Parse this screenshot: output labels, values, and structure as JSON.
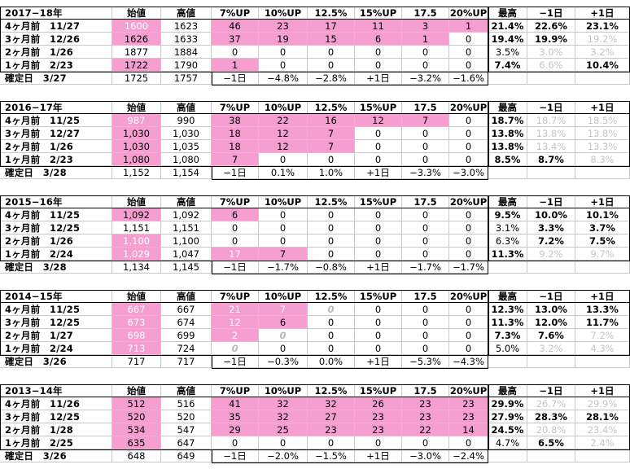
{
  "columns": [
    "",
    "始値",
    "高値",
    "7%UP",
    "10%UP",
    "12.5%",
    "15%UP",
    "17.5",
    "20%UP",
    "最高",
    "−1日",
    "+1日"
  ],
  "sections": [
    {
      "title": "2017−18年",
      "rows": [
        {
          "label": "4ヶ月前　11/27",
          "cells": [
            "1600",
            "1623",
            "46",
            "23",
            "17",
            "11",
            "3",
            "1",
            "21.4%",
            "22.6%",
            "23.1%"
          ],
          "pink": [
            0,
            2,
            3,
            4,
            5,
            6,
            7
          ],
          "dim": [],
          "bold": [
            8,
            9,
            10
          ],
          "faint": [
            0
          ]
        },
        {
          "label": "3ヶ月前　12/26",
          "cells": [
            "1626",
            "1633",
            "37",
            "19",
            "15",
            "6",
            "1",
            "0",
            "19.4%",
            "19.9%",
            "19.2%"
          ],
          "pink": [
            0,
            2,
            3,
            4,
            5,
            6
          ],
          "dim": [
            10
          ],
          "bold": [
            8,
            9
          ],
          "faint": []
        },
        {
          "label": "2ヶ月前　1/26",
          "cells": [
            "1877",
            "1884",
            "0",
            "0",
            "0",
            "0",
            "0",
            "0",
            "3.5%",
            "3.0%",
            "3.2%"
          ],
          "pink": [],
          "dim": [
            9,
            10
          ],
          "bold": [],
          "faint": []
        },
        {
          "label": "1ヶ月前　2/23",
          "cells": [
            "1722",
            "1790",
            "1",
            "0",
            "0",
            "0",
            "0",
            "0",
            "7.4%",
            "6.6%",
            "10.4%"
          ],
          "pink": [
            0,
            2
          ],
          "dim": [
            9
          ],
          "bold": [
            8,
            10
          ],
          "faint": []
        }
      ],
      "confirm": {
        "label": "確定日　3/27",
        "cells": [
          "1725",
          "1757",
          "−1日",
          "−4.8%",
          "−2.8%",
          "+1日",
          "−3.2%",
          "−1.6%"
        ]
      }
    },
    {
      "title": "2016−17年",
      "rows": [
        {
          "label": "4ヶ月前　11/25",
          "cells": [
            "987",
            "990",
            "38",
            "22",
            "16",
            "12",
            "7",
            "0",
            "18.7%",
            "18.7%",
            "18.5%"
          ],
          "pink": [
            0,
            2,
            3,
            4,
            5,
            6
          ],
          "dim": [
            9,
            10
          ],
          "bold": [
            8
          ],
          "faint": [
            0
          ]
        },
        {
          "label": "3ヶ月前　12/27",
          "cells": [
            "1,030",
            "1,030",
            "18",
            "12",
            "7",
            "0",
            "0",
            "0",
            "13.8%",
            "13.8%",
            "13.8%"
          ],
          "pink": [
            0,
            2,
            3,
            4
          ],
          "dim": [
            9,
            10
          ],
          "bold": [
            8
          ],
          "faint": []
        },
        {
          "label": "2ヶ月前　1/26",
          "cells": [
            "1,030",
            "1,035",
            "18",
            "12",
            "7",
            "0",
            "0",
            "0",
            "13.8%",
            "13.4%",
            "13.3%"
          ],
          "pink": [
            0,
            2,
            3,
            4
          ],
          "dim": [
            9,
            10
          ],
          "bold": [
            8
          ],
          "faint": []
        },
        {
          "label": "1ヶ月前　2/23",
          "cells": [
            "1,080",
            "1,080",
            "7",
            "0",
            "0",
            "0",
            "0",
            "0",
            "8.5%",
            "8.7%",
            "8.3%"
          ],
          "pink": [
            0,
            2
          ],
          "dim": [
            10
          ],
          "bold": [
            8,
            9
          ],
          "faint": []
        }
      ],
      "confirm": {
        "label": "確定日　3/28",
        "cells": [
          "1,152",
          "1,154",
          "−1日",
          "0.1%",
          "1.0%",
          "+1日",
          "−3.3%",
          "−3.0%"
        ]
      }
    },
    {
      "title": "2015−16年",
      "rows": [
        {
          "label": "4ヶ月前　11/25",
          "cells": [
            "1,092",
            "1,092",
            "6",
            "0",
            "0",
            "0",
            "0",
            "0",
            "9.5%",
            "10.0%",
            "10.1%"
          ],
          "pink": [
            0,
            2
          ],
          "dim": [],
          "bold": [
            8,
            9,
            10
          ],
          "faint": []
        },
        {
          "label": "3ヶ月前　12/25",
          "cells": [
            "1,151",
            "1,151",
            "0",
            "0",
            "0",
            "0",
            "0",
            "0",
            "3.1%",
            "3.3%",
            "3.7%"
          ],
          "pink": [],
          "dim": [],
          "bold": [
            9,
            10
          ],
          "faint": []
        },
        {
          "label": "2ヶ月前　1/26",
          "cells": [
            "1,100",
            "1,100",
            "0",
            "0",
            "0",
            "0",
            "0",
            "0",
            "6.3%",
            "7.2%",
            "7.5%"
          ],
          "pink": [
            0
          ],
          "dim": [],
          "bold": [
            9,
            10
          ],
          "faint": [
            0
          ]
        },
        {
          "label": "1ヶ月前　2/24",
          "cells": [
            "1,029",
            "1,047",
            "17",
            "7",
            "0",
            "0",
            "0",
            "0",
            "11.3%",
            "9.2%",
            "9.7%"
          ],
          "pink": [
            0,
            2,
            3
          ],
          "dim": [
            9,
            10
          ],
          "bold": [
            8
          ],
          "faint": [
            0,
            2
          ]
        }
      ],
      "confirm": {
        "label": "確定日　3/28",
        "cells": [
          "1,134",
          "1,145",
          "−1日",
          "−1.7%",
          "−0.8%",
          "+1日",
          "−1.7%",
          "−1.7%"
        ]
      }
    },
    {
      "title": "2014−15年",
      "rows": [
        {
          "label": "4ヶ月前　11/25",
          "cells": [
            "667",
            "667",
            "21",
            "7",
            "0",
            "0",
            "0",
            "0",
            "12.3%",
            "13.0%",
            "13.3%"
          ],
          "pink": [
            0,
            2,
            3
          ],
          "dim": [],
          "bold": [
            8,
            9,
            10
          ],
          "faint": [
            0,
            2,
            3
          ],
          "italic": [
            4
          ]
        },
        {
          "label": "3ヶ月前　12/25",
          "cells": [
            "673",
            "674",
            "12",
            "6",
            "0",
            "0",
            "0",
            "0",
            "11.3%",
            "12.0%",
            "11.7%"
          ],
          "pink": [
            0,
            2,
            3
          ],
          "dim": [],
          "bold": [
            8,
            9,
            10
          ],
          "faint": [
            0,
            2
          ],
          "italic": []
        },
        {
          "label": "2ヶ月前　1/27",
          "cells": [
            "698",
            "699",
            "2",
            "0",
            "0",
            "0",
            "0",
            "0",
            "7.3%",
            "7.6%",
            "7.2%"
          ],
          "pink": [
            0,
            2
          ],
          "dim": [
            10
          ],
          "bold": [
            8,
            9
          ],
          "faint": [
            0,
            2
          ],
          "italic": [
            3
          ]
        },
        {
          "label": "1ヶ月前　2/24",
          "cells": [
            "713",
            "724",
            "0",
            "0",
            "0",
            "0",
            "0",
            "0",
            "5.0%",
            "3.2%",
            "4.3%"
          ],
          "pink": [
            0
          ],
          "dim": [
            9,
            10
          ],
          "bold": [],
          "faint": [
            0
          ],
          "italic": [
            2
          ]
        }
      ],
      "confirm": {
        "label": "確定日　3/26",
        "cells": [
          "717",
          "717",
          "−1日",
          "−0.3%",
          "0.0%",
          "+1日",
          "−5.3%",
          "−4.3%"
        ]
      }
    },
    {
      "title": "2013−14年",
      "rows": [
        {
          "label": "4ヶ月前　11/26",
          "cells": [
            "512",
            "516",
            "41",
            "32",
            "32",
            "26",
            "23",
            "23",
            "29.9%",
            "26.7%",
            "29.9%"
          ],
          "pink": [
            0,
            2,
            3,
            4,
            5,
            6,
            7
          ],
          "dim": [
            9,
            10
          ],
          "bold": [
            8
          ],
          "faint": []
        },
        {
          "label": "3ヶ月前　12/25",
          "cells": [
            "520",
            "520",
            "35",
            "32",
            "27",
            "23",
            "23",
            "23",
            "27.9%",
            "28.3%",
            "28.1%"
          ],
          "pink": [
            0,
            2,
            3,
            4,
            5,
            6,
            7
          ],
          "dim": [],
          "bold": [
            8,
            9,
            10
          ],
          "faint": []
        },
        {
          "label": "2ヶ月前　1/28",
          "cells": [
            "534",
            "547",
            "29",
            "25",
            "23",
            "23",
            "22",
            "14",
            "24.5%",
            "20.8%",
            "23.4%"
          ],
          "pink": [
            0,
            2,
            3,
            4,
            5,
            6,
            7
          ],
          "dim": [
            9,
            10
          ],
          "bold": [
            8
          ],
          "faint": []
        },
        {
          "label": "1ヶ月前　2/25",
          "cells": [
            "635",
            "647",
            "0",
            "0",
            "0",
            "0",
            "0",
            "0",
            "4.7%",
            "6.5%",
            "2.4%"
          ],
          "pink": [
            0
          ],
          "dim": [
            10
          ],
          "bold": [
            9
          ],
          "faint": []
        }
      ],
      "confirm": {
        "label": "確定日　3/26",
        "cells": [
          "648",
          "649",
          "−1日",
          "−2.0%",
          "−1.5%",
          "+1日",
          "−3.0%",
          "−2.4%"
        ]
      }
    }
  ]
}
